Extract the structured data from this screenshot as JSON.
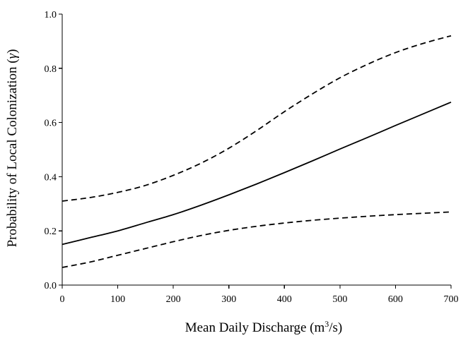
{
  "chart_data": {
    "type": "line",
    "title": "",
    "xlabel": {
      "prefix": "Mean Daily Discharge (m",
      "superscript": "3",
      "suffix": "/s)"
    },
    "ylabel": {
      "prefix": "Probability of Local Colonization (",
      "symbol": "γ",
      "suffix": ")"
    },
    "xlim": [
      0,
      700
    ],
    "ylim": [
      0.0,
      1.0
    ],
    "xticks": [
      0,
      100,
      200,
      300,
      400,
      500,
      600,
      700
    ],
    "yticks": [
      "0.0",
      "0.2",
      "0.4",
      "0.6",
      "0.8",
      "1.0"
    ],
    "grid": false,
    "legend": "none",
    "series": [
      {
        "role": "estimate",
        "style": "solid",
        "color": "#000000",
        "points": [
          [
            0,
            0.15
          ],
          [
            50,
            0.175
          ],
          [
            100,
            0.2
          ],
          [
            150,
            0.23
          ],
          [
            200,
            0.26
          ],
          [
            250,
            0.295
          ],
          [
            300,
            0.333
          ],
          [
            350,
            0.373
          ],
          [
            400,
            0.415
          ],
          [
            450,
            0.458
          ],
          [
            500,
            0.502
          ],
          [
            550,
            0.545
          ],
          [
            600,
            0.589
          ],
          [
            650,
            0.632
          ],
          [
            700,
            0.675
          ]
        ]
      },
      {
        "role": "upper-bound",
        "style": "dashed",
        "color": "#000000",
        "points": [
          [
            0,
            0.31
          ],
          [
            50,
            0.323
          ],
          [
            100,
            0.342
          ],
          [
            150,
            0.368
          ],
          [
            200,
            0.405
          ],
          [
            250,
            0.45
          ],
          [
            300,
            0.505
          ],
          [
            350,
            0.57
          ],
          [
            400,
            0.64
          ],
          [
            450,
            0.705
          ],
          [
            500,
            0.765
          ],
          [
            550,
            0.815
          ],
          [
            600,
            0.858
          ],
          [
            650,
            0.892
          ],
          [
            700,
            0.92
          ]
        ]
      },
      {
        "role": "lower-bound",
        "style": "dashed",
        "color": "#000000",
        "points": [
          [
            0,
            0.065
          ],
          [
            50,
            0.085
          ],
          [
            100,
            0.11
          ],
          [
            150,
            0.135
          ],
          [
            200,
            0.16
          ],
          [
            250,
            0.183
          ],
          [
            300,
            0.202
          ],
          [
            350,
            0.217
          ],
          [
            400,
            0.229
          ],
          [
            450,
            0.239
          ],
          [
            500,
            0.247
          ],
          [
            550,
            0.254
          ],
          [
            600,
            0.26
          ],
          [
            650,
            0.265
          ],
          [
            700,
            0.27
          ]
        ]
      }
    ]
  }
}
